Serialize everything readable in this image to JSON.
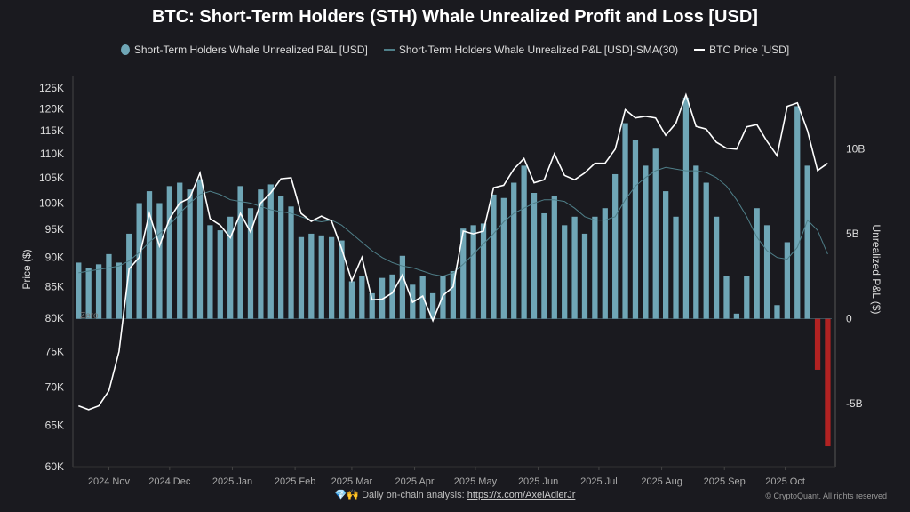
{
  "chart_data": {
    "type": "bar+line",
    "title": "BTC: Short-Term Holders (STH) Whale Unrealized Profit and Loss [USD]",
    "legend_position": "top",
    "left_axis": {
      "label": "Price ($)",
      "scale": "log",
      "range": [
        60000,
        128000
      ],
      "ticks": [
        {
          "v": 125000,
          "t": "125K"
        },
        {
          "v": 120000,
          "t": "120K"
        },
        {
          "v": 115000,
          "t": "115K"
        },
        {
          "v": 110000,
          "t": "110K"
        },
        {
          "v": 105000,
          "t": "105K"
        },
        {
          "v": 100000,
          "t": "100K"
        },
        {
          "v": 95000,
          "t": "95K"
        },
        {
          "v": 90000,
          "t": "90K"
        },
        {
          "v": 85000,
          "t": "85K"
        },
        {
          "v": 80000,
          "t": "80K"
        },
        {
          "v": 75000,
          "t": "75K"
        },
        {
          "v": 70000,
          "t": "70K"
        },
        {
          "v": 65000,
          "t": "65K"
        },
        {
          "v": 60000,
          "t": "60K"
        }
      ]
    },
    "right_axis": {
      "label": "Unrealized P&L ($)",
      "scale": "linear",
      "range": [
        -8.7,
        14.3
      ],
      "ticks": [
        {
          "v": 10,
          "t": "10B"
        },
        {
          "v": 5,
          "t": "5B"
        },
        {
          "v": 0,
          "t": "0"
        },
        {
          "v": -5,
          "t": "-5B"
        }
      ]
    },
    "zero_label": "Zero",
    "x_ticks": [
      {
        "d": "2024-11-01",
        "t": "2024 Nov"
      },
      {
        "d": "2024-12-01",
        "t": "2024 Dec"
      },
      {
        "d": "2025-01-01",
        "t": "2025 Jan"
      },
      {
        "d": "2025-02-01",
        "t": "2025 Feb"
      },
      {
        "d": "2025-03-01",
        "t": "2025 Mar"
      },
      {
        "d": "2025-04-01",
        "t": "2025 Apr"
      },
      {
        "d": "2025-05-01",
        "t": "2025 May"
      },
      {
        "d": "2025-06-01",
        "t": "2025 Jun"
      },
      {
        "d": "2025-07-01",
        "t": "2025 Jul"
      },
      {
        "d": "2025-08-01",
        "t": "2025 Aug"
      },
      {
        "d": "2025-09-01",
        "t": "2025 Sep"
      },
      {
        "d": "2025-10-01",
        "t": "2025 Oct"
      }
    ],
    "x_range": [
      "2024-10-16",
      "2025-10-24"
    ],
    "dates": [
      "2024-10-17",
      "2024-10-22",
      "2024-10-27",
      "2024-11-01",
      "2024-11-06",
      "2024-11-11",
      "2024-11-16",
      "2024-11-21",
      "2024-11-26",
      "2024-12-01",
      "2024-12-06",
      "2024-12-11",
      "2024-12-16",
      "2024-12-21",
      "2024-12-26",
      "2024-12-31",
      "2025-01-05",
      "2025-01-10",
      "2025-01-15",
      "2025-01-20",
      "2025-01-25",
      "2025-01-30",
      "2025-02-04",
      "2025-02-09",
      "2025-02-14",
      "2025-02-19",
      "2025-02-24",
      "2025-03-01",
      "2025-03-06",
      "2025-03-11",
      "2025-03-16",
      "2025-03-21",
      "2025-03-26",
      "2025-03-31",
      "2025-04-05",
      "2025-04-10",
      "2025-04-15",
      "2025-04-20",
      "2025-04-25",
      "2025-04-30",
      "2025-05-05",
      "2025-05-10",
      "2025-05-15",
      "2025-05-20",
      "2025-05-25",
      "2025-05-30",
      "2025-06-04",
      "2025-06-09",
      "2025-06-14",
      "2025-06-19",
      "2025-06-24",
      "2025-06-29",
      "2025-07-04",
      "2025-07-09",
      "2025-07-14",
      "2025-07-19",
      "2025-07-24",
      "2025-07-29",
      "2025-08-03",
      "2025-08-08",
      "2025-08-13",
      "2025-08-18",
      "2025-08-23",
      "2025-08-28",
      "2025-09-02",
      "2025-09-07",
      "2025-09-12",
      "2025-09-17",
      "2025-09-22",
      "2025-09-27",
      "2025-10-02",
      "2025-10-07",
      "2025-10-12",
      "2025-10-17",
      "2025-10-22"
    ],
    "series": [
      {
        "name": "Short-Term Holders Whale Unrealized P&L [USD]",
        "type": "bar",
        "axis": "right",
        "unit": "B USD",
        "color": "#6fa6b6",
        "negative_color": "#b22222",
        "values": [
          3.3,
          3.0,
          3.2,
          3.8,
          3.3,
          5.0,
          6.8,
          7.5,
          6.8,
          7.8,
          8.0,
          7.6,
          8.2,
          5.5,
          5.2,
          6.0,
          7.8,
          6.5,
          7.6,
          7.9,
          7.2,
          6.6,
          4.8,
          5.0,
          4.9,
          4.8,
          4.6,
          2.2,
          2.5,
          1.5,
          2.4,
          2.6,
          3.7,
          2.0,
          2.5,
          1.5,
          2.5,
          2.8,
          5.3,
          5.5,
          5.6,
          7.3,
          7.1,
          8.0,
          9.0,
          7.4,
          6.2,
          7.2,
          5.5,
          6.0,
          5.0,
          6.0,
          6.5,
          8.5,
          11.5,
          10.5,
          9.0,
          10.0,
          7.5,
          6.0,
          13.0,
          9.0,
          8.0,
          6.0,
          2.5,
          0.3,
          2.5,
          6.5,
          5.5,
          0.8,
          4.5,
          12.5,
          9.0,
          -3.0,
          -7.5
        ]
      },
      {
        "name": "Short-Term Holders Whale Unrealized P&L [USD]-SMA(30)",
        "type": "line",
        "axis": "right",
        "unit": "B USD",
        "color": "#4f7f89",
        "values": [
          2.7,
          2.8,
          2.9,
          3.0,
          3.1,
          3.4,
          3.9,
          4.5,
          5.0,
          5.5,
          6.2,
          6.8,
          7.3,
          7.5,
          7.3,
          7.0,
          6.9,
          6.8,
          6.6,
          6.4,
          6.3,
          6.2,
          6.0,
          5.8,
          5.7,
          5.8,
          5.5,
          5.0,
          4.5,
          4.0,
          3.6,
          3.3,
          3.1,
          3.0,
          2.8,
          2.6,
          2.5,
          2.7,
          3.2,
          3.8,
          4.4,
          5.0,
          5.7,
          6.2,
          6.5,
          6.8,
          7.0,
          7.0,
          6.9,
          6.5,
          6.0,
          5.8,
          5.8,
          6.0,
          7.0,
          7.8,
          8.3,
          8.7,
          8.9,
          8.8,
          8.7,
          8.7,
          8.6,
          8.3,
          7.8,
          7.0,
          6.0,
          4.8,
          4.0,
          3.6,
          3.5,
          4.2,
          5.8,
          5.2,
          3.8
        ]
      },
      {
        "name": "BTC Price [USD]",
        "type": "line",
        "axis": "left",
        "color": "#ffffff",
        "values": [
          67500,
          67000,
          67500,
          69500,
          75000,
          88000,
          90000,
          98000,
          92000,
          97000,
          100000,
          101000,
          106000,
          97000,
          95800,
          93500,
          98000,
          94500,
          100000,
          102000,
          104800,
          105000,
          98000,
          96500,
          97500,
          96600,
          91500,
          86000,
          90000,
          82900,
          83000,
          84000,
          87000,
          82500,
          83500,
          79600,
          83600,
          85000,
          94700,
          94200,
          94700,
          103000,
          103500,
          106800,
          109000,
          104000,
          104600,
          110000,
          105500,
          104600,
          106000,
          108000,
          108000,
          111000,
          119800,
          117900,
          118300,
          117900,
          114000,
          116700,
          123300,
          116000,
          115400,
          112500,
          111200,
          111000,
          115900,
          116400,
          112700,
          109600,
          120600,
          121400,
          115000,
          106500,
          108000
        ]
      }
    ]
  },
  "legend": {
    "items": [
      {
        "label": "Short-Term Holders Whale Unrealized P&L [USD]",
        "color": "#6fa6b6"
      },
      {
        "label": "Short-Term Holders Whale Unrealized P&L [USD]-SMA(30)",
        "color": "#4f7f89"
      },
      {
        "label": "BTC Price [USD]",
        "color": "#ffffff"
      }
    ]
  },
  "footer": {
    "icons": "💎🙌",
    "text": "Daily on-chain analysis:",
    "link": "https://x.com/AxelAdlerJr",
    "copyright": "© CryptoQuant. All rights reserved"
  }
}
